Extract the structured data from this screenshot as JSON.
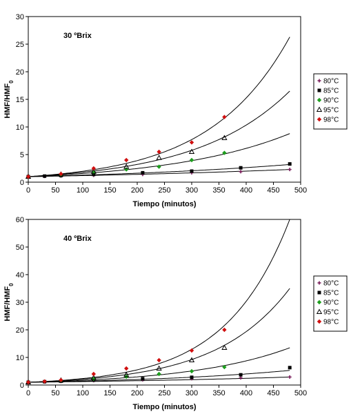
{
  "chart_data": [
    {
      "type": "scatter",
      "annotation": "30 ºBrix",
      "xlabel": "Tiempo (minutos)",
      "ylabel": "HMF/HMF0",
      "xlim": [
        0,
        500
      ],
      "ylim": [
        0,
        30
      ],
      "xticks": [
        0,
        50,
        100,
        150,
        200,
        250,
        300,
        350,
        400,
        450,
        500
      ],
      "yticks": [
        0,
        5,
        10,
        15,
        20,
        25,
        30
      ],
      "legend_position": "right",
      "series": [
        {
          "name": "80°C",
          "marker": "plus",
          "color": "#7a1f5c",
          "points": [
            [
              0,
              1
            ],
            [
              30,
              1.05
            ],
            [
              60,
              1.1
            ],
            [
              120,
              1.25
            ],
            [
              210,
              1.4
            ],
            [
              300,
              1.7
            ],
            [
              390,
              1.9
            ],
            [
              480,
              2.3
            ]
          ],
          "fit": [
            [
              0,
              1
            ],
            [
              480,
              2.3
            ]
          ]
        },
        {
          "name": "85°C",
          "marker": "square",
          "color": "#000000",
          "points": [
            [
              0,
              1
            ],
            [
              30,
              1.1
            ],
            [
              60,
              1.2
            ],
            [
              120,
              1.4
            ],
            [
              210,
              1.7
            ],
            [
              300,
              2.0
            ],
            [
              390,
              2.6
            ],
            [
              480,
              3.3
            ]
          ],
          "fit": [
            [
              0,
              1
            ],
            [
              480,
              3.2
            ]
          ]
        },
        {
          "name": "90°C",
          "marker": "diamond",
          "color": "#1e9e1e",
          "points": [
            [
              0,
              1
            ],
            [
              60,
              1.3
            ],
            [
              120,
              1.8
            ],
            [
              180,
              2.3
            ],
            [
              240,
              2.8
            ],
            [
              300,
              4.0
            ],
            [
              360,
              5.3
            ]
          ],
          "fit": [
            [
              0,
              1
            ],
            [
              480,
              8.8
            ]
          ]
        },
        {
          "name": "95°C",
          "marker": "triangle",
          "color": "#000000",
          "points": [
            [
              0,
              1
            ],
            [
              60,
              1.4
            ],
            [
              120,
              1.9
            ],
            [
              180,
              2.8
            ],
            [
              240,
              4.4
            ],
            [
              300,
              5.5
            ],
            [
              360,
              8.0
            ]
          ],
          "fit": [
            [
              0,
              1
            ],
            [
              480,
              16.5
            ]
          ]
        },
        {
          "name": "98°C",
          "marker": "diamond",
          "color": "#d01010",
          "points": [
            [
              0,
              1
            ],
            [
              60,
              1.5
            ],
            [
              120,
              2.5
            ],
            [
              180,
              4.0
            ],
            [
              240,
              5.5
            ],
            [
              300,
              7.2
            ],
            [
              360,
              11.8
            ]
          ],
          "fit": [
            [
              0,
              1
            ],
            [
              480,
              26.3
            ]
          ]
        }
      ]
    },
    {
      "type": "scatter",
      "annotation": "40 ºBrix",
      "xlabel": "Tiempo (minutos)",
      "ylabel": "HMF/HMF0",
      "xlim": [
        0,
        500
      ],
      "ylim": [
        0,
        60
      ],
      "xticks": [
        0,
        50,
        100,
        150,
        200,
        250,
        300,
        350,
        400,
        450,
        500
      ],
      "yticks": [
        0,
        10,
        20,
        30,
        40,
        50,
        60
      ],
      "legend_position": "right",
      "series": [
        {
          "name": "80°C",
          "marker": "plus",
          "color": "#7a1f5c",
          "points": [
            [
              0,
              1
            ],
            [
              30,
              1.1
            ],
            [
              60,
              1.3
            ],
            [
              120,
              1.6
            ],
            [
              210,
              1.9
            ],
            [
              300,
              2.3
            ],
            [
              390,
              2.6
            ],
            [
              480,
              2.9
            ]
          ],
          "fit": [
            [
              0,
              1
            ],
            [
              480,
              2.9
            ]
          ]
        },
        {
          "name": "85°C",
          "marker": "square",
          "color": "#000000",
          "points": [
            [
              0,
              1
            ],
            [
              30,
              1.2
            ],
            [
              60,
              1.4
            ],
            [
              120,
              1.8
            ],
            [
              210,
              2.3
            ],
            [
              300,
              2.8
            ],
            [
              390,
              3.7
            ],
            [
              480,
              6.3
            ]
          ],
          "fit": [
            [
              0,
              1
            ],
            [
              480,
              5.3
            ]
          ]
        },
        {
          "name": "90°C",
          "marker": "diamond",
          "color": "#1e9e1e",
          "points": [
            [
              0,
              1
            ],
            [
              60,
              1.6
            ],
            [
              120,
              2.2
            ],
            [
              180,
              3.0
            ],
            [
              240,
              4.0
            ],
            [
              300,
              5.0
            ],
            [
              360,
              6.5
            ]
          ],
          "fit": [
            [
              0,
              1
            ],
            [
              480,
              13.5
            ]
          ]
        },
        {
          "name": "95°C",
          "marker": "triangle",
          "color": "#000000",
          "points": [
            [
              0,
              1
            ],
            [
              60,
              1.7
            ],
            [
              120,
              2.6
            ],
            [
              180,
              3.7
            ],
            [
              240,
              6.0
            ],
            [
              300,
              9.0
            ],
            [
              360,
              13.5
            ]
          ],
          "fit": [
            [
              0,
              1
            ],
            [
              480,
              35
            ]
          ]
        },
        {
          "name": "98°C",
          "marker": "diamond",
          "color": "#d01010",
          "points": [
            [
              0,
              1
            ],
            [
              30,
              1.3
            ],
            [
              60,
              1.8
            ],
            [
              120,
              4.0
            ],
            [
              180,
              6.0
            ],
            [
              240,
              9.0
            ],
            [
              300,
              12.5
            ],
            [
              360,
              20.0
            ]
          ],
          "fit": [
            [
              0,
              1
            ],
            [
              480,
              60
            ]
          ]
        }
      ]
    }
  ]
}
